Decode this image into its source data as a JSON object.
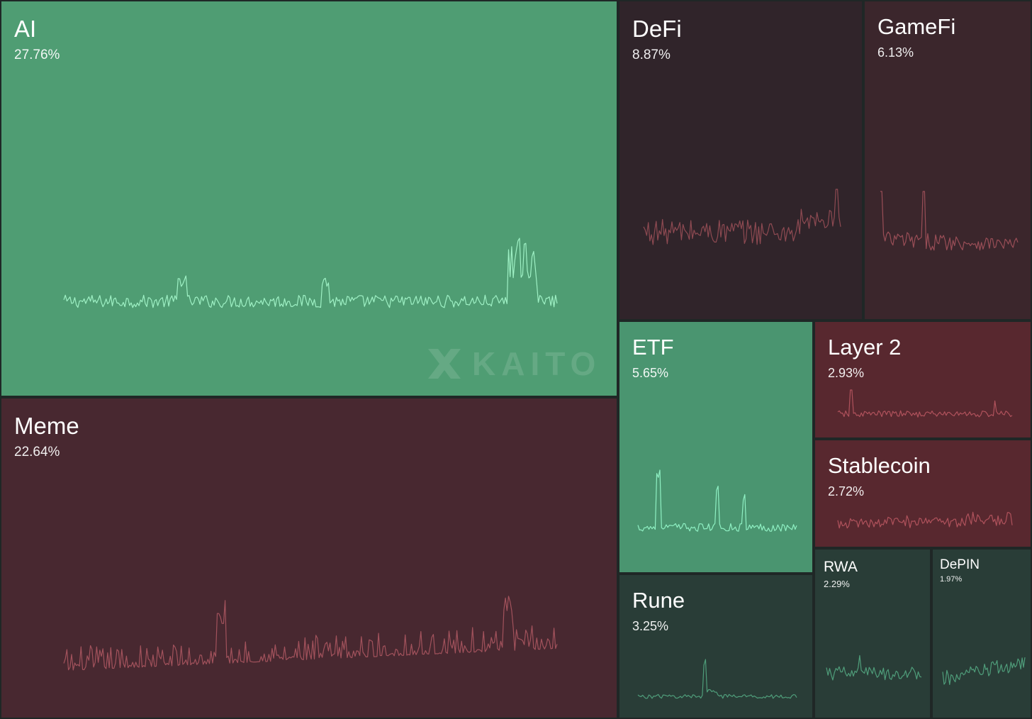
{
  "watermark": "KAITO",
  "chart_data": {
    "type": "treemap",
    "title": "",
    "items": [
      {
        "name": "AI",
        "percent": "27.76%",
        "value": 27.76,
        "trend": "up",
        "color": "#4f9d73",
        "line_color": "#9ef0c4",
        "size": "xl"
      },
      {
        "name": "Meme",
        "percent": "22.64%",
        "value": 22.64,
        "trend": "down",
        "color": "#482830",
        "line_color": "#a2525c",
        "size": "xl"
      },
      {
        "name": "DeFi",
        "percent": "8.87%",
        "value": 8.87,
        "trend": "down",
        "color": "#30242a",
        "line_color": "#8e4a52",
        "size": "l"
      },
      {
        "name": "GameFi",
        "percent": "6.13%",
        "value": 6.13,
        "trend": "down",
        "color": "#3b262c",
        "line_color": "#9a4e57",
        "size": "m"
      },
      {
        "name": "ETF",
        "percent": "5.65%",
        "value": 5.65,
        "trend": "up",
        "color": "#4a9570",
        "line_color": "#8ff0c3",
        "size": "m"
      },
      {
        "name": "Layer 2",
        "percent": "2.93%",
        "value": 2.93,
        "trend": "down",
        "color": "#58282f",
        "line_color": "#b0525c",
        "size": "m"
      },
      {
        "name": "Stablecoin",
        "percent": "2.72%",
        "value": 2.72,
        "trend": "down",
        "color": "#58282f",
        "line_color": "#b0525c",
        "size": "m"
      },
      {
        "name": "Rune",
        "percent": "3.25%",
        "value": 3.25,
        "trend": "up",
        "color": "#293d37",
        "line_color": "#4f9d7a",
        "size": "m"
      },
      {
        "name": "RWA",
        "percent": "2.29%",
        "value": 2.29,
        "trend": "up",
        "color": "#293d37",
        "line_color": "#4f9d7a",
        "size": "s"
      },
      {
        "name": "DePIN",
        "percent": "1.97%",
        "value": 1.97,
        "trend": "up",
        "color": "#293d37",
        "line_color": "#4f9d7a",
        "size": "xs"
      }
    ]
  }
}
